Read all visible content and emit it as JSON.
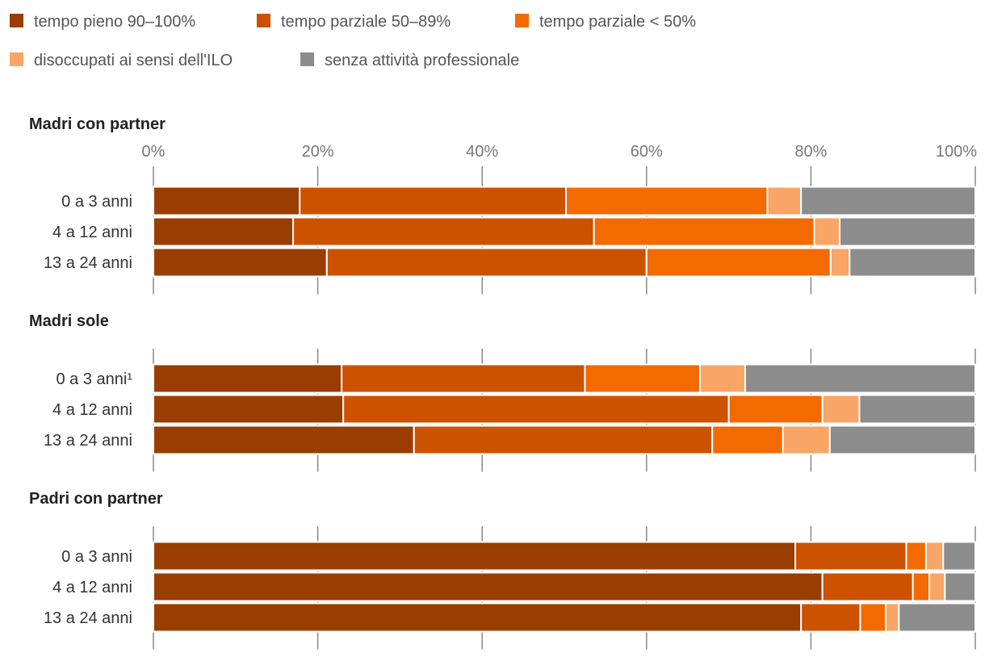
{
  "chart_data": {
    "type": "bar",
    "orientation": "horizontal",
    "stacked": true,
    "xlim": [
      0,
      100
    ],
    "ticks": [
      "0%",
      "20%",
      "40%",
      "60%",
      "80%",
      "100%"
    ],
    "tick_values": [
      0,
      20,
      40,
      60,
      80,
      100
    ],
    "legend": [
      {
        "name": "tempo pieno 90–100%",
        "color": "#993d00"
      },
      {
        "name": "tempo parziale 50–89%",
        "color": "#cc5200"
      },
      {
        "name": "tempo parziale < 50%",
        "color": "#f26a00"
      },
      {
        "name": "disoccupati ai sensi dell'ILO",
        "color": "#f9a566"
      },
      {
        "name": "senza attività professionale",
        "color": "#8c8c8c"
      }
    ],
    "panels": [
      {
        "title": "Madri con partner",
        "categories": [
          "0 a 3 anni",
          "4 a 12 anni",
          "13 a 24 anni"
        ],
        "rows": [
          [
            17.8,
            32.4,
            24.5,
            4.1,
            21.2
          ],
          [
            17.0,
            36.6,
            26.8,
            3.1,
            16.5
          ],
          [
            21.1,
            38.9,
            22.4,
            2.3,
            15.3
          ]
        ]
      },
      {
        "title": "Madri sole",
        "categories": [
          "0 a 3 anni¹",
          "4 a 12 anni",
          "13 a 24 anni"
        ],
        "rows": [
          [
            22.9,
            29.6,
            14.0,
            5.5,
            28.0
          ],
          [
            23.1,
            46.9,
            11.4,
            4.5,
            14.1
          ],
          [
            31.7,
            36.3,
            8.6,
            5.7,
            17.7
          ]
        ]
      },
      {
        "title": "Padri con partner",
        "categories": [
          "0 a 3 anni",
          "4 a 12 anni",
          "13 a 24 anni"
        ],
        "rows": [
          [
            78.1,
            13.5,
            2.4,
            2.1,
            3.9
          ],
          [
            81.4,
            11.0,
            2.0,
            1.9,
            3.7
          ],
          [
            78.8,
            7.2,
            3.1,
            1.6,
            9.3
          ]
        ]
      }
    ]
  }
}
